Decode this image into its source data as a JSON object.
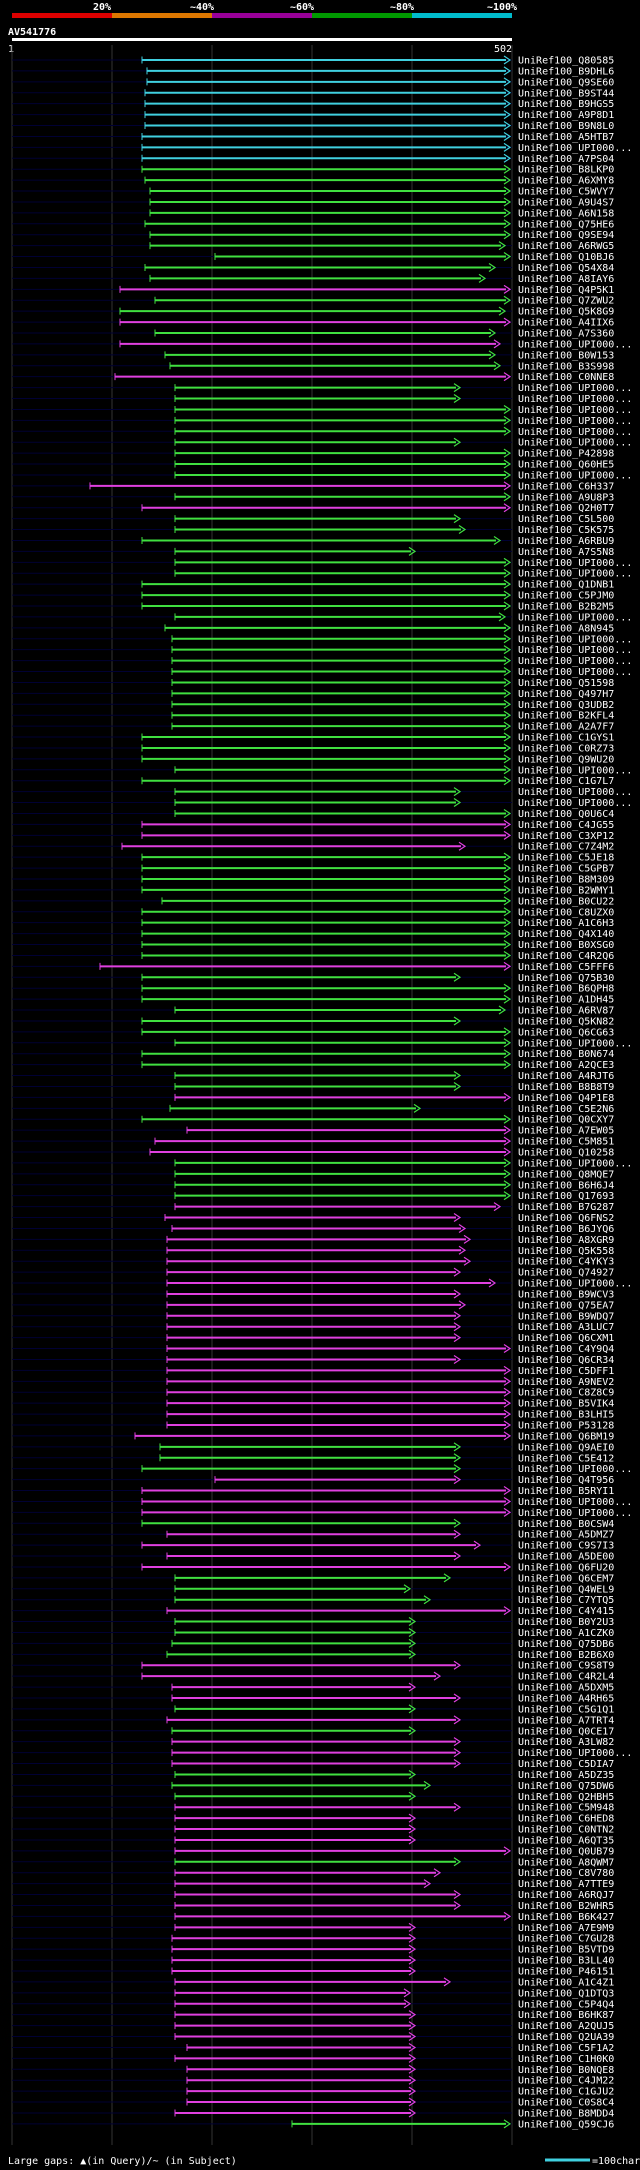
{
  "chart_data": {
    "type": "alignment-hits",
    "query_name": "AV541776",
    "query_start_label": "1",
    "query_end_label": "502",
    "identity_scale": [
      {
        "label": "20%",
        "color": "#dd0000"
      },
      {
        "label": "~40%",
        "color": "#dd7700"
      },
      {
        "label": "~60%",
        "color": "#990099"
      },
      {
        "label": "~80%",
        "color": "#009900"
      },
      {
        "label": "~100%",
        "color": "#00bbcc"
      }
    ],
    "row_colors": {
      "cyan": "#40d0e0",
      "green": "#40e040",
      "magenta": "#e040e0",
      "track": "#000033"
    },
    "legend": {
      "gaps_text": "Large gaps: ▲(in Query)/~ (in Subject)",
      "scale_text": "=100char."
    },
    "hits": [
      [
        "UniRef100_Q80585",
        "c",
        142,
        510
      ],
      [
        "UniRef100_B9DHL6",
        "c",
        147,
        510
      ],
      [
        "UniRef100_Q9SE60",
        "c",
        147,
        510
      ],
      [
        "UniRef100_B9ST44",
        "c",
        145,
        510
      ],
      [
        "UniRef100_B9HGS5",
        "c",
        145,
        510
      ],
      [
        "UniRef100_A9P8D1",
        "c",
        145,
        510
      ],
      [
        "UniRef100_B9N8L0",
        "c",
        145,
        510
      ],
      [
        "UniRef100_A5HTB7",
        "c",
        142,
        510
      ],
      [
        "UniRef100_UPI000...",
        "c",
        142,
        510
      ],
      [
        "UniRef100_A7PS04",
        "c",
        142,
        510
      ],
      [
        "UniRef100_B8LKP0",
        "g",
        142,
        510
      ],
      [
        "UniRef100_A6XMY8",
        "g",
        145,
        510
      ],
      [
        "UniRef100_C5WVY7",
        "g",
        150,
        510
      ],
      [
        "UniRef100_A9U4S7",
        "g",
        150,
        510
      ],
      [
        "UniRef100_A6N158",
        "g",
        150,
        510
      ],
      [
        "UniRef100_Q75HE6",
        "g",
        145,
        510
      ],
      [
        "UniRef100_Q9SE94",
        "g",
        150,
        510
      ],
      [
        "UniRef100_A6RWG5",
        "g",
        150,
        505
      ],
      [
        "UniRef100_Q10BJ6",
        "g",
        215,
        510
      ],
      [
        "UniRef100_Q54X84",
        "g",
        145,
        495
      ],
      [
        "UniRef100_A8IAY6",
        "g",
        150,
        485
      ],
      [
        "UniRef100_Q4P5K1",
        "m",
        120,
        510
      ],
      [
        "UniRef100_Q7ZWU2",
        "g",
        155,
        510
      ],
      [
        "UniRef100_Q5K8G9",
        "g",
        120,
        505
      ],
      [
        "UniRef100_A4IIX6",
        "m",
        120,
        510
      ],
      [
        "UniRef100_A7S360",
        "g",
        155,
        495
      ],
      [
        "UniRef100_UPI000...",
        "m",
        120,
        500
      ],
      [
        "UniRef100_B0W153",
        "g",
        165,
        495
      ],
      [
        "UniRef100_B3S998",
        "g",
        170,
        500
      ],
      [
        "UniRef100_C0NNE8",
        "m",
        115,
        510
      ],
      [
        "UniRef100_UPI000...",
        "g",
        175,
        460
      ],
      [
        "UniRef100_UPI000...",
        "g",
        175,
        460
      ],
      [
        "UniRef100_UPI000...",
        "g",
        175,
        510
      ],
      [
        "UniRef100_UPI000...",
        "g",
        175,
        510
      ],
      [
        "UniRef100_UPI000...",
        "g",
        175,
        510
      ],
      [
        "UniRef100_UPI000...",
        "g",
        175,
        460
      ],
      [
        "UniRef100_P42898",
        "g",
        175,
        510
      ],
      [
        "UniRef100_Q60HE5",
        "g",
        175,
        510
      ],
      [
        "UniRef100_UPI000...",
        "g",
        175,
        510
      ],
      [
        "UniRef100_C6H337",
        "m",
        90,
        510
      ],
      [
        "UniRef100_A9U8P3",
        "g",
        175,
        510
      ],
      [
        "UniRef100_Q2H0T7",
        "m",
        142,
        510
      ],
      [
        "UniRef100_C5L500",
        "g",
        175,
        460
      ],
      [
        "UniRef100_C5K575",
        "g",
        175,
        465
      ],
      [
        "UniRef100_A6RBU9",
        "g",
        142,
        500
      ],
      [
        "UniRef100_A7S5N8",
        "g",
        175,
        415
      ],
      [
        "UniRef100_UPI000...",
        "g",
        175,
        510
      ],
      [
        "UniRef100_UPI000...",
        "g",
        175,
        510
      ],
      [
        "UniRef100_Q1DNB1",
        "g",
        142,
        510
      ],
      [
        "UniRef100_C5PJM0",
        "g",
        142,
        510
      ],
      [
        "UniRef100_B2B2M5",
        "g",
        142,
        510
      ],
      [
        "UniRef100_UPI000...",
        "g",
        175,
        505
      ],
      [
        "UniRef100_A8N945",
        "g",
        165,
        510
      ],
      [
        "UniRef100_UPI000...",
        "g",
        172,
        510
      ],
      [
        "UniRef100_UPI000...",
        "g",
        172,
        510
      ],
      [
        "UniRef100_UPI000...",
        "g",
        172,
        510
      ],
      [
        "UniRef100_UPI000...",
        "g",
        172,
        510
      ],
      [
        "UniRef100_Q51598",
        "g",
        172,
        510
      ],
      [
        "UniRef100_Q497H7",
        "g",
        172,
        510
      ],
      [
        "UniRef100_Q3UDB2",
        "g",
        172,
        510
      ],
      [
        "UniRef100_B2KFL4",
        "g",
        172,
        510
      ],
      [
        "UniRef100_A2A7F7",
        "g",
        172,
        510
      ],
      [
        "UniRef100_C1GYS1",
        "g",
        142,
        510
      ],
      [
        "UniRef100_C0RZ73",
        "g",
        142,
        510
      ],
      [
        "UniRef100_Q9WU20",
        "g",
        142,
        510
      ],
      [
        "UniRef100_UPI000...",
        "g",
        175,
        510
      ],
      [
        "UniRef100_C1G7L7",
        "g",
        142,
        510
      ],
      [
        "UniRef100_UPI000...",
        "g",
        175,
        460
      ],
      [
        "UniRef100_UPI000...",
        "g",
        175,
        460
      ],
      [
        "UniRef100_Q0U6C4",
        "g",
        175,
        510
      ],
      [
        "UniRef100_C4JG55",
        "m",
        142,
        510
      ],
      [
        "UniRef100_C3XP12",
        "m",
        142,
        510
      ],
      [
        "UniRef100_C7Z4M2",
        "m",
        122,
        465
      ],
      [
        "UniRef100_C5JE18",
        "g",
        142,
        510
      ],
      [
        "UniRef100_C5GPB7",
        "g",
        142,
        510
      ],
      [
        "UniRef100_B8M309",
        "g",
        142,
        510
      ],
      [
        "UniRef100_B2WMY1",
        "g",
        142,
        510
      ],
      [
        "UniRef100_B0CU22",
        "g",
        162,
        510
      ],
      [
        "UniRef100_C8UZX0",
        "g",
        142,
        510
      ],
      [
        "UniRef100_A1C6H3",
        "g",
        142,
        510
      ],
      [
        "UniRef100_Q4X140",
        "g",
        142,
        510
      ],
      [
        "UniRef100_B0XSG0",
        "g",
        142,
        510
      ],
      [
        "UniRef100_C4R2Q6",
        "g",
        142,
        510
      ],
      [
        "UniRef100_C5FFF6",
        "m",
        100,
        510
      ],
      [
        "UniRef100_Q75B30",
        "g",
        142,
        460
      ],
      [
        "UniRef100_B6QPH8",
        "g",
        142,
        510
      ],
      [
        "UniRef100_A1DH45",
        "g",
        142,
        510
      ],
      [
        "UniRef100_A6RV87",
        "g",
        175,
        505
      ],
      [
        "UniRef100_Q5KN82",
        "g",
        142,
        460
      ],
      [
        "UniRef100_Q6CG63",
        "g",
        142,
        510
      ],
      [
        "UniRef100_UPI000...",
        "g",
        175,
        510
      ],
      [
        "UniRef100_B0N674",
        "g",
        142,
        510
      ],
      [
        "UniRef100_A2QCE3",
        "g",
        142,
        510
      ],
      [
        "UniRef100_A4RJT6",
        "g",
        175,
        460
      ],
      [
        "UniRef100_B8B8T9",
        "g",
        175,
        460
      ],
      [
        "UniRef100_Q4P1E8",
        "m",
        175,
        510
      ],
      [
        "UniRef100_C5E2N6",
        "g",
        170,
        420
      ],
      [
        "UniRef100_Q0CXY7",
        "g",
        142,
        510
      ],
      [
        "UniRef100_A7EW05",
        "m",
        187,
        510
      ],
      [
        "UniRef100_C5M851",
        "m",
        155,
        510
      ],
      [
        "UniRef100_Q10258",
        "m",
        150,
        510
      ],
      [
        "UniRef100_UPI000...",
        "g",
        175,
        510
      ],
      [
        "UniRef100_Q8MQE7",
        "g",
        175,
        510
      ],
      [
        "UniRef100_B6H6J4",
        "g",
        175,
        510
      ],
      [
        "UniRef100_Q17693",
        "g",
        175,
        510
      ],
      [
        "UniRef100_B7G287",
        "m",
        175,
        500
      ],
      [
        "UniRef100_Q6FNS2",
        "m",
        165,
        460
      ],
      [
        "UniRef100_B6JYQ6",
        "m",
        172,
        465
      ],
      [
        "UniRef100_A8XGR9",
        "m",
        167,
        470
      ],
      [
        "UniRef100_Q5K558",
        "m",
        167,
        465
      ],
      [
        "UniRef100_C4YKY3",
        "m",
        167,
        470
      ],
      [
        "UniRef100_Q74927",
        "m",
        167,
        460
      ],
      [
        "UniRef100_UPI000...",
        "m",
        167,
        495
      ],
      [
        "UniRef100_B9WCV3",
        "m",
        167,
        460
      ],
      [
        "UniRef100_Q75EA7",
        "m",
        167,
        465
      ],
      [
        "UniRef100_B9WDQ7",
        "m",
        167,
        460
      ],
      [
        "UniRef100_A3LUC7",
        "m",
        167,
        460
      ],
      [
        "UniRef100_Q6CXM1",
        "m",
        167,
        460
      ],
      [
        "UniRef100_C4Y9Q4",
        "m",
        167,
        510
      ],
      [
        "UniRef100_Q6CR34",
        "m",
        167,
        460
      ],
      [
        "UniRef100_C5DFF1",
        "m",
        167,
        510
      ],
      [
        "UniRef100_A9NEV2",
        "m",
        167,
        510
      ],
      [
        "UniRef100_C8Z8C9",
        "m",
        167,
        510
      ],
      [
        "UniRef100_B5VIK4",
        "m",
        167,
        510
      ],
      [
        "UniRef100_B3LHI5",
        "m",
        167,
        510
      ],
      [
        "UniRef100_P53128",
        "m",
        167,
        510
      ],
      [
        "UniRef100_Q6BM19",
        "m",
        135,
        510
      ],
      [
        "UniRef100_Q9AEI0",
        "g",
        160,
        460
      ],
      [
        "UniRef100_C5E412",
        "g",
        160,
        460
      ],
      [
        "UniRef100_UPI000...",
        "g",
        142,
        460
      ],
      [
        "UniRef100_Q4T956",
        "m",
        215,
        460
      ],
      [
        "UniRef100_B5RYI1",
        "m",
        142,
        510
      ],
      [
        "UniRef100_UPI000...",
        "m",
        142,
        510
      ],
      [
        "UniRef100_UPI000...",
        "m",
        142,
        510
      ],
      [
        "UniRef100_B0CSW4",
        "g",
        142,
        460
      ],
      [
        "UniRef100_A5DMZ7",
        "m",
        167,
        460
      ],
      [
        "UniRef100_C9S7I3",
        "m",
        142,
        480
      ],
      [
        "UniRef100_A5DE00",
        "m",
        167,
        460
      ],
      [
        "UniRef100_Q6FU20",
        "m",
        142,
        510
      ],
      [
        "UniRef100_Q6CEM7",
        "g",
        175,
        450
      ],
      [
        "UniRef100_Q4WEL9",
        "g",
        175,
        410
      ],
      [
        "UniRef100_C7YTQ5",
        "g",
        175,
        430
      ],
      [
        "UniRef100_C4Y415",
        "m",
        167,
        510
      ],
      [
        "UniRef100_B0Y2U3",
        "g",
        175,
        415
      ],
      [
        "UniRef100_A1CZK0",
        "g",
        175,
        415
      ],
      [
        "UniRef100_Q75DB6",
        "g",
        172,
        415
      ],
      [
        "UniRef100_B2B6X0",
        "g",
        167,
        415
      ],
      [
        "UniRef100_C9S8T9",
        "m",
        142,
        460
      ],
      [
        "UniRef100_C4R2L4",
        "m",
        142,
        440
      ],
      [
        "UniRef100_A5DXM5",
        "m",
        172,
        415
      ],
      [
        "UniRef100_A4RH65",
        "m",
        172,
        460
      ],
      [
        "UniRef100_C5G1Q1",
        "g",
        175,
        415
      ],
      [
        "UniRef100_A7TRT4",
        "m",
        167,
        460
      ],
      [
        "UniRef100_Q0CE17",
        "g",
        172,
        415
      ],
      [
        "UniRef100_A3LW82",
        "m",
        172,
        460
      ],
      [
        "UniRef100_UPI000...",
        "m",
        172,
        460
      ],
      [
        "UniRef100_C5DIA7",
        "m",
        172,
        460
      ],
      [
        "UniRef100_A5DZ35",
        "g",
        175,
        415
      ],
      [
        "UniRef100_Q75DW6",
        "g",
        172,
        430
      ],
      [
        "UniRef100_Q2HBH5",
        "g",
        175,
        415
      ],
      [
        "UniRef100_C5M948",
        "m",
        175,
        460
      ],
      [
        "UniRef100_C6HED8",
        "m",
        175,
        415
      ],
      [
        "UniRef100_C0NTN2",
        "m",
        175,
        415
      ],
      [
        "UniRef100_A6QT35",
        "m",
        175,
        415
      ],
      [
        "UniRef100_Q0UB79",
        "m",
        175,
        510
      ],
      [
        "UniRef100_A8QWM7",
        "g",
        175,
        460
      ],
      [
        "UniRef100_C8V780",
        "m",
        175,
        440
      ],
      [
        "UniRef100_A7TTE9",
        "m",
        175,
        430
      ],
      [
        "UniRef100_A6RQJ7",
        "m",
        175,
        460
      ],
      [
        "UniRef100_B2WHR5",
        "m",
        175,
        460
      ],
      [
        "UniRef100_B6K427",
        "m",
        175,
        510
      ],
      [
        "UniRef100_A7E9M9",
        "m",
        175,
        415
      ],
      [
        "UniRef100_C7GU28",
        "m",
        172,
        415
      ],
      [
        "UniRef100_B5VTD9",
        "m",
        172,
        415
      ],
      [
        "UniRef100_B3LL40",
        "m",
        172,
        415
      ],
      [
        "UniRef100_P46151",
        "m",
        172,
        415
      ],
      [
        "UniRef100_A1C4Z1",
        "m",
        175,
        450
      ],
      [
        "UniRef100_Q1DTQ3",
        "m",
        175,
        410
      ],
      [
        "UniRef100_C5P4Q4",
        "m",
        175,
        410
      ],
      [
        "UniRef100_B6HK87",
        "m",
        175,
        415
      ],
      [
        "UniRef100_A2QUJ5",
        "m",
        175,
        415
      ],
      [
        "UniRef100_Q2UA39",
        "m",
        175,
        415
      ],
      [
        "UniRef100_C5F1A2",
        "m",
        187,
        415
      ],
      [
        "UniRef100_C1H0K0",
        "m",
        175,
        415
      ],
      [
        "UniRef100_B0NQE8",
        "m",
        187,
        415
      ],
      [
        "UniRef100_C4JM22",
        "m",
        187,
        415
      ],
      [
        "UniRef100_C1GJU2",
        "m",
        187,
        415
      ],
      [
        "UniRef100_C0S8C4",
        "m",
        187,
        415
      ],
      [
        "UniRef100_B8MDD4",
        "m",
        175,
        415
      ],
      [
        "UniRef100_Q59CJ6",
        "g",
        292,
        510
      ]
    ]
  }
}
